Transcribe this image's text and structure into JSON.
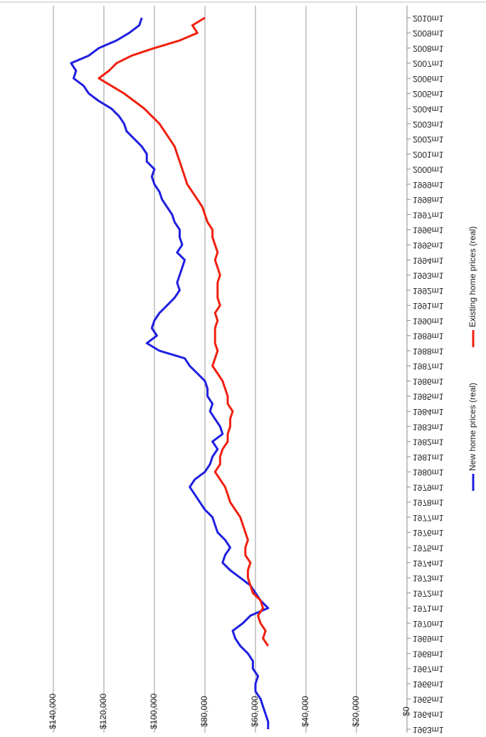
{
  "chart_data": {
    "type": "line",
    "x": [
      1963,
      1963.5,
      1964,
      1964.5,
      1965,
      1965.5,
      1966,
      1966.5,
      1967,
      1967.5,
      1968,
      1968.5,
      1969,
      1969.5,
      1970,
      1970.5,
      1971,
      1971.5,
      1972,
      1972.5,
      1973,
      1973.5,
      1974,
      1974.5,
      1975,
      1975.5,
      1976,
      1976.5,
      1977,
      1977.5,
      1978,
      1978.5,
      1979,
      1979.5,
      1980,
      1980.5,
      1981,
      1981.5,
      1982,
      1982.5,
      1983,
      1983.5,
      1984,
      1984.5,
      1985,
      1985.5,
      1986,
      1986.5,
      1987,
      1987.5,
      1988,
      1988.5,
      1989,
      1989.5,
      1990,
      1990.5,
      1991,
      1991.5,
      1992,
      1992.5,
      1993,
      1993.5,
      1994,
      1994.5,
      1995,
      1995.5,
      1996,
      1996.5,
      1997,
      1997.5,
      1998,
      1998.5,
      1999,
      1999.5,
      2000,
      2000.5,
      2001,
      2001.5,
      2002,
      2002.5,
      2003,
      2003.5,
      2004,
      2004.5,
      2005,
      2005.5,
      2006,
      2006.5,
      2007,
      2007.5,
      2008,
      2008.5,
      2009,
      2009.5,
      2010
    ],
    "series": [
      {
        "name": "New home prices (real)",
        "color": "#1f1fe0",
        "values": [
          55000,
          55000,
          56000,
          57000,
          58000,
          60000,
          60000,
          59000,
          61000,
          61000,
          63000,
          66000,
          68000,
          69000,
          65000,
          62000,
          55000,
          58000,
          60000,
          62000,
          66000,
          70000,
          73000,
          72000,
          70000,
          72000,
          75000,
          76000,
          77000,
          80000,
          82000,
          84000,
          86000,
          84000,
          80000,
          78000,
          77000,
          75000,
          77000,
          73000,
          74000,
          76000,
          78000,
          77000,
          79000,
          79000,
          80000,
          83000,
          86000,
          88000,
          98000,
          103000,
          99000,
          101000,
          100000,
          98000,
          95000,
          92000,
          90000,
          91000,
          90000,
          89000,
          88000,
          91000,
          89000,
          90000,
          90000,
          92000,
          93000,
          95000,
          97000,
          98000,
          100000,
          101000,
          100000,
          103000,
          103000,
          105000,
          108000,
          111000,
          112000,
          114000,
          117000,
          122000,
          126000,
          128000,
          132000,
          131000,
          133000,
          126000,
          122000,
          115000,
          110000,
          106000,
          105000
        ]
      },
      {
        "name": "Existing home prices (real)",
        "color": "#f02010",
        "values": [
          null,
          null,
          null,
          null,
          null,
          null,
          null,
          null,
          null,
          null,
          null,
          55000,
          57000,
          56000,
          58000,
          59000,
          57000,
          58000,
          61000,
          62000,
          63000,
          63000,
          62000,
          64000,
          64000,
          63000,
          64000,
          65000,
          66000,
          68000,
          70000,
          71000,
          72000,
          74000,
          76000,
          74000,
          74000,
          73000,
          71000,
          71000,
          70000,
          70000,
          69000,
          71000,
          71000,
          72000,
          73000,
          75000,
          77000,
          76000,
          75000,
          76000,
          76000,
          76000,
          75000,
          76000,
          74000,
          75000,
          75000,
          75000,
          74000,
          75000,
          76000,
          75000,
          76000,
          77000,
          77000,
          79000,
          80000,
          81000,
          83000,
          85000,
          87000,
          88000,
          89000,
          90000,
          91000,
          92000,
          94000,
          96000,
          98000,
          101000,
          104000,
          108000,
          112000,
          117000,
          122000,
          118000,
          115000,
          109000,
          100000,
          90000,
          83000,
          85000,
          80000
        ]
      }
    ],
    "xlim": [
      1963,
      2010
    ],
    "xticks": [
      {
        "value": 1963,
        "label": "1963m1"
      },
      {
        "value": 1964,
        "label": "1964m1"
      },
      {
        "value": 1965,
        "label": "1965m1"
      },
      {
        "value": 1966,
        "label": "1966m1"
      },
      {
        "value": 1967,
        "label": "1967m1"
      },
      {
        "value": 1968,
        "label": "1968m1"
      },
      {
        "value": 1969,
        "label": "1969m1"
      },
      {
        "value": 1970,
        "label": "1970m1"
      },
      {
        "value": 1971,
        "label": "1971m1"
      },
      {
        "value": 1972,
        "label": "1972m1"
      },
      {
        "value": 1973,
        "label": "1973m1"
      },
      {
        "value": 1974,
        "label": "1974m1"
      },
      {
        "value": 1975,
        "label": "1975m1"
      },
      {
        "value": 1976,
        "label": "1976m1"
      },
      {
        "value": 1977,
        "label": "1977m1"
      },
      {
        "value": 1978,
        "label": "1978m1"
      },
      {
        "value": 1979,
        "label": "1979m1"
      },
      {
        "value": 1980,
        "label": "1980m1"
      },
      {
        "value": 1981,
        "label": "1981m1"
      },
      {
        "value": 1982,
        "label": "1982m1"
      },
      {
        "value": 1983,
        "label": "1983m1"
      },
      {
        "value": 1984,
        "label": "1984m1"
      },
      {
        "value": 1985,
        "label": "1985m1"
      },
      {
        "value": 1986,
        "label": "1986m1"
      },
      {
        "value": 1987,
        "label": "1987m1"
      },
      {
        "value": 1988,
        "label": "1988m1"
      },
      {
        "value": 1989,
        "label": "1989m1"
      },
      {
        "value": 1990,
        "label": "1990m1"
      },
      {
        "value": 1991,
        "label": "1991m1"
      },
      {
        "value": 1992,
        "label": "1992m1"
      },
      {
        "value": 1993,
        "label": "1993m1"
      },
      {
        "value": 1994,
        "label": "1994m1"
      },
      {
        "value": 1995,
        "label": "1995m1"
      },
      {
        "value": 1996,
        "label": "1996m1"
      },
      {
        "value": 1997,
        "label": "1997m1"
      },
      {
        "value": 1998,
        "label": "1998m1"
      },
      {
        "value": 1999,
        "label": "1999m1"
      },
      {
        "value": 2000,
        "label": "2000m1"
      },
      {
        "value": 2001,
        "label": "2001m1"
      },
      {
        "value": 2002,
        "label": "2002m1"
      },
      {
        "value": 2003,
        "label": "2003m1"
      },
      {
        "value": 2004,
        "label": "2004m1"
      },
      {
        "value": 2005,
        "label": "2005m1"
      },
      {
        "value": 2006,
        "label": "2006m1"
      },
      {
        "value": 2007,
        "label": "2007m1"
      },
      {
        "value": 2008,
        "label": "2008m1"
      },
      {
        "value": 2009,
        "label": "2009m1"
      },
      {
        "value": 2010,
        "label": "2010m1"
      }
    ],
    "ylim": [
      0,
      140000
    ],
    "yticks": [
      {
        "value": 0,
        "label": "$0"
      },
      {
        "value": 20000,
        "label": "$20,000"
      },
      {
        "value": 40000,
        "label": "$40,000"
      },
      {
        "value": 60000,
        "label": "$60,000"
      },
      {
        "value": 80000,
        "label": "$80,000"
      },
      {
        "value": 100000,
        "label": "$100,000"
      },
      {
        "value": 120000,
        "label": "$120,000"
      },
      {
        "value": 140000,
        "label": "$140,000"
      }
    ],
    "grid": true
  }
}
